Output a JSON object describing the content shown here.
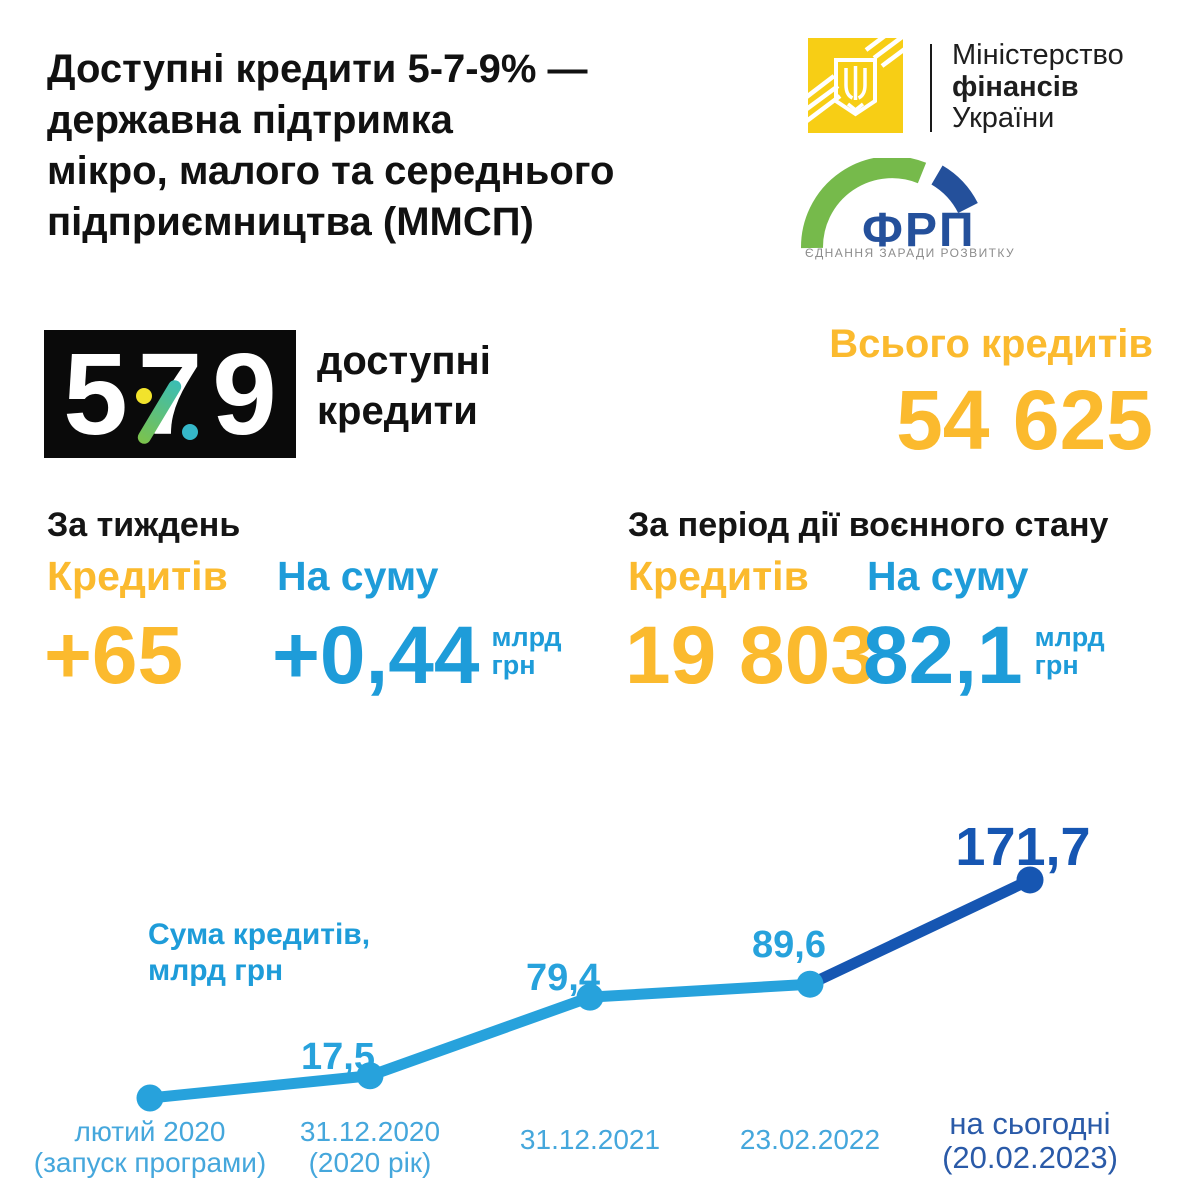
{
  "header": {
    "title": "Доступні кредити 5-7-9% —\nдержавна підтримка\nмікро, малого та середнього\nпідприємництва (ММСП)"
  },
  "logos": {
    "minfin": {
      "line1": "Міністерство",
      "line2": "фінансів",
      "line3": "України",
      "square_color": "#F7CE15"
    },
    "frp": {
      "name": "ФРП",
      "tagline": "ЄДНАННЯ ЗАРАДИ РОЗВИТКУ",
      "green": "#76BA4B",
      "navy": "#24509B"
    }
  },
  "program_logo": {
    "digit_left": "5",
    "digit_mid": "7",
    "digit_right": "9",
    "caption": "доступні\nкредити",
    "dot_yellow": "#F2E32C",
    "dot_teal": "#35B7C8",
    "slash_green": "#7CC24B"
  },
  "totals": {
    "label": "Всього кредитів",
    "value": "54 625"
  },
  "week": {
    "title": "За тиждень",
    "credits_label": "Кредитів",
    "credits_value": "+65",
    "sum_label": "На суму",
    "sum_value": "+0,44",
    "sum_unit": "млрд\nгрн"
  },
  "war": {
    "title": "За період дії воєнного стану",
    "credits_label": "Кредитів",
    "credits_value": "19 803",
    "sum_label": "На суму",
    "sum_value": "82,1",
    "sum_unit": "млрд\nгрн"
  },
  "colors": {
    "accent_yellow": "#FBBA2E",
    "accent_blue": "#1E9CD9",
    "accent_dark_blue": "#1656B2",
    "text_black": "#111111"
  },
  "chart_data": {
    "type": "line",
    "title": "Сума кредитів,\nмлрд грн",
    "x": [
      "лютий 2020\n(запуск програми)",
      "31.12.2020\n(2020 рік)",
      "31.12.2021",
      "23.02.2022",
      "на сьогодні\n(20.02.2023)"
    ],
    "values": [
      0,
      17.5,
      79.4,
      89.6,
      171.7
    ],
    "point_labels": [
      "",
      "17,5",
      "79,4",
      "89,6",
      "171,7"
    ],
    "xlabel": "",
    "ylabel": "Сума кредитів, млрд грн",
    "ylim": [
      0,
      190
    ],
    "grid": false,
    "legend": "none",
    "line_color_main": "#27A2DC",
    "line_color_final": "#1656B2",
    "tick_color": "#45A7DC",
    "final_tick_color": "#2A5AA8"
  }
}
